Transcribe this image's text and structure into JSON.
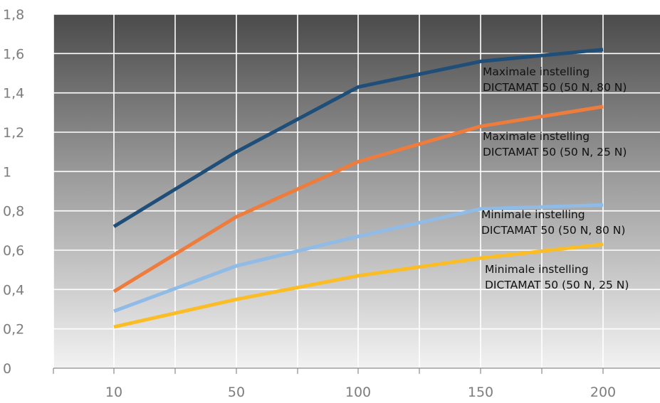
{
  "chart_data": {
    "type": "line",
    "title": "",
    "xlabel": "",
    "ylabel": "",
    "categories": [
      "10",
      "50",
      "100",
      "150",
      "200"
    ],
    "x_tick_labels": [
      "10",
      "50",
      "100",
      "150",
      "200"
    ],
    "y_tick_labels": [
      "0",
      "0,2",
      "0,4",
      "0,6",
      "0,8",
      "1",
      "1,2",
      "1,4",
      "1,6",
      "1,8"
    ],
    "ylim": [
      0,
      1.8
    ],
    "grid": true,
    "legend": "none",
    "series": [
      {
        "name": "",
        "color": "#1f4e79",
        "values": [
          0.72,
          1.1,
          1.43,
          1.56,
          1.62
        ],
        "label_lines": [
          "Maximale instelling",
          "DICTAMAT 50 (50 N, 80 N)"
        ]
      },
      {
        "name": "",
        "color": "#ee7c3c",
        "values": [
          0.39,
          0.77,
          1.05,
          1.23,
          1.33
        ],
        "label_lines": [
          "Maximale instelling",
          "DICTAMAT 50 (50 N, 25 N)"
        ]
      },
      {
        "name": "",
        "color": "#8fbbe6",
        "values": [
          0.29,
          0.52,
          0.67,
          0.81,
          0.83
        ],
        "label_lines": [
          "Minimale instelling",
          "DICTAMAT 50 (50 N, 80 N)"
        ]
      },
      {
        "name": "",
        "color": "#fbbd26",
        "values": [
          0.21,
          0.35,
          0.47,
          0.56,
          0.63
        ],
        "label_lines": [
          "Minimale instelling",
          "DICTAMAT 50 (50 N, 25 N)"
        ]
      }
    ]
  }
}
